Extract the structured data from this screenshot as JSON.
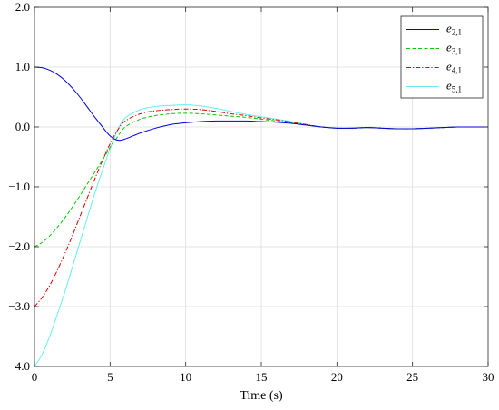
{
  "chart_data": {
    "type": "line",
    "title": "",
    "xlabel": "Time (s)",
    "ylabel": "",
    "xlim": [
      0,
      30
    ],
    "ylim": [
      -4.0,
      2.0
    ],
    "xticks": [
      0,
      5,
      10,
      15,
      20,
      25,
      30
    ],
    "xtick_labels": [
      "0",
      "5",
      "10",
      "15",
      "20",
      "25",
      "30"
    ],
    "yticks": [
      -4,
      -3,
      -2,
      -1,
      0,
      1,
      2
    ],
    "ytick_labels": [
      "−4.0",
      "−3.0",
      "−2.0",
      "−1.0",
      "0.0",
      "1.0",
      "2.0"
    ],
    "grid": true,
    "legend_position": "top-right",
    "series": [
      {
        "name": "e",
        "name_sub": "2,1",
        "color": "#0000dd",
        "dash": "solid",
        "x": [
          0,
          0.5,
          1,
          1.5,
          2,
          2.5,
          3,
          3.5,
          4,
          4.5,
          5,
          5.5,
          6,
          7,
          8,
          9,
          10,
          11,
          12,
          13,
          14,
          15,
          16,
          17,
          18,
          19,
          20,
          21,
          22,
          23,
          24,
          25,
          26,
          27,
          28,
          29,
          30
        ],
        "y": [
          1.0,
          0.99,
          0.95,
          0.88,
          0.78,
          0.65,
          0.5,
          0.33,
          0.16,
          0.0,
          -0.15,
          -0.22,
          -0.2,
          -0.1,
          -0.02,
          0.04,
          0.07,
          0.09,
          0.1,
          0.1,
          0.1,
          0.09,
          0.08,
          0.06,
          0.03,
          0.0,
          -0.02,
          -0.02,
          -0.01,
          -0.02,
          -0.03,
          -0.03,
          -0.02,
          -0.01,
          0.0,
          0.0,
          0.0
        ]
      },
      {
        "name": "e",
        "name_sub": "3,1",
        "color": "#00cc00",
        "dash": "dashed",
        "x": [
          0,
          0.5,
          1,
          1.5,
          2,
          2.5,
          3,
          3.5,
          4,
          4.5,
          5,
          5.5,
          6,
          7,
          8,
          9,
          10,
          11,
          12,
          13,
          14,
          15,
          16,
          17,
          18,
          19,
          20,
          21,
          22,
          23,
          24,
          25,
          26,
          27,
          28,
          29,
          30
        ],
        "y": [
          -2.0,
          -1.93,
          -1.82,
          -1.68,
          -1.52,
          -1.34,
          -1.15,
          -0.95,
          -0.75,
          -0.55,
          -0.34,
          -0.16,
          0.0,
          0.13,
          0.19,
          0.22,
          0.23,
          0.22,
          0.2,
          0.18,
          0.16,
          0.13,
          0.1,
          0.07,
          0.03,
          0.0,
          -0.02,
          -0.02,
          -0.01,
          -0.02,
          -0.03,
          -0.03,
          -0.02,
          -0.01,
          0.0,
          0.0,
          0.0
        ]
      },
      {
        "name": "e",
        "name_sub": "4,1",
        "color": "#dd0000",
        "dash": "dashdot",
        "x": [
          0,
          0.5,
          1,
          1.5,
          2,
          2.5,
          3,
          3.5,
          4,
          4.5,
          5,
          5.5,
          6,
          7,
          8,
          9,
          10,
          11,
          12,
          13,
          14,
          15,
          16,
          17,
          18,
          19,
          20,
          21,
          22,
          23,
          24,
          25,
          26,
          27,
          28,
          29,
          30
        ],
        "y": [
          -3.0,
          -2.85,
          -2.65,
          -2.4,
          -2.12,
          -1.82,
          -1.5,
          -1.18,
          -0.86,
          -0.56,
          -0.28,
          -0.05,
          0.1,
          0.22,
          0.27,
          0.29,
          0.3,
          0.29,
          0.26,
          0.22,
          0.19,
          0.15,
          0.12,
          0.08,
          0.04,
          0.0,
          -0.02,
          -0.02,
          -0.01,
          -0.02,
          -0.03,
          -0.03,
          -0.02,
          -0.01,
          0.0,
          0.0,
          0.0
        ]
      },
      {
        "name": "e",
        "name_sub": "5,1",
        "color": "#66eeee",
        "dash": "solid",
        "x": [
          0,
          0.5,
          1,
          1.5,
          2,
          2.5,
          3,
          3.5,
          4,
          4.5,
          5,
          5.5,
          6,
          7,
          8,
          9,
          10,
          11,
          12,
          13,
          14,
          15,
          16,
          17,
          18,
          19,
          20,
          21,
          22,
          23,
          24,
          25,
          26,
          27,
          28,
          29,
          30
        ],
        "y": [
          -4.0,
          -3.8,
          -3.5,
          -3.14,
          -2.76,
          -2.35,
          -1.93,
          -1.51,
          -1.1,
          -0.72,
          -0.36,
          -0.05,
          0.15,
          0.29,
          0.34,
          0.36,
          0.37,
          0.35,
          0.31,
          0.26,
          0.21,
          0.17,
          0.13,
          0.09,
          0.04,
          0.0,
          -0.02,
          -0.02,
          -0.01,
          -0.02,
          -0.03,
          -0.03,
          -0.02,
          -0.01,
          0.0,
          0.0,
          0.0
        ]
      }
    ]
  }
}
